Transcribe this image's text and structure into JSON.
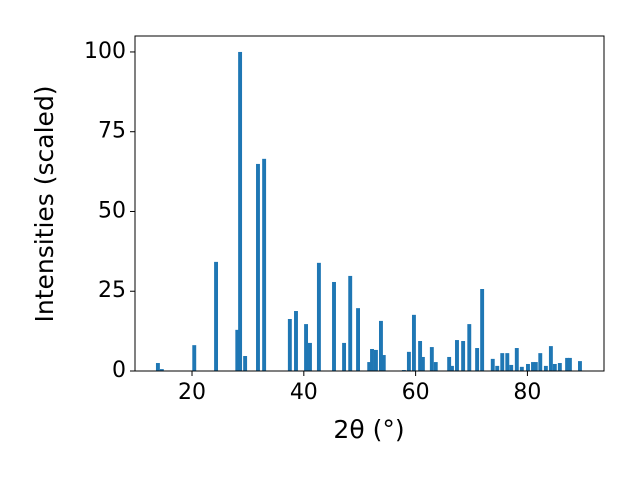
{
  "chart_data": {
    "type": "bar",
    "x_label": "2θ (°)",
    "y_label": "Intensities (scaled)",
    "color": "#1f77b4",
    "x": [
      13.9,
      14.6,
      20.4,
      24.3,
      28.1,
      28.6,
      29.5,
      31.8,
      32.9,
      37.5,
      38.6,
      40.4,
      41.1,
      42.7,
      45.4,
      47.2,
      48.3,
      49.7,
      51.7,
      52.2,
      52.9,
      53.8,
      54.3,
      57.9,
      58.8,
      59.7,
      60.8,
      61.3,
      62.9,
      63.6,
      66.0,
      66.5,
      67.4,
      68.5,
      69.6,
      71.0,
      71.9,
      73.8,
      74.6,
      75.5,
      76.4,
      77.1,
      78.1,
      79.0,
      80.1,
      81.0,
      81.5,
      82.3,
      83.3,
      84.2,
      84.9,
      85.8,
      87.1,
      87.6,
      89.4
    ],
    "values": [
      2.5,
      0.6,
      8.1,
      34.2,
      12.9,
      100,
      4.7,
      64.9,
      66.5,
      16.3,
      18.8,
      14.7,
      8.8,
      33.9,
      27.9,
      8.8,
      29.8,
      19.7,
      2.8,
      6.9,
      6.6,
      15.7,
      5.0,
      0.3,
      6.0,
      17.6,
      9.4,
      4.4,
      7.5,
      2.8,
      4.4,
      1.6,
      9.7,
      9.4,
      14.7,
      7.2,
      25.7,
      3.8,
      1.6,
      5.6,
      5.6,
      1.9,
      7.2,
      1.3,
      2.2,
      2.8,
      2.8,
      5.6,
      1.6,
      7.8,
      2.2,
      2.5,
      4.1,
      4.1,
      3.1
    ],
    "xlim": [
      9.8,
      93.7
    ],
    "xticks": [
      20,
      40,
      60,
      80
    ],
    "ylim": [
      0,
      105
    ],
    "yticks": [
      0,
      25,
      50,
      75,
      100
    ]
  }
}
